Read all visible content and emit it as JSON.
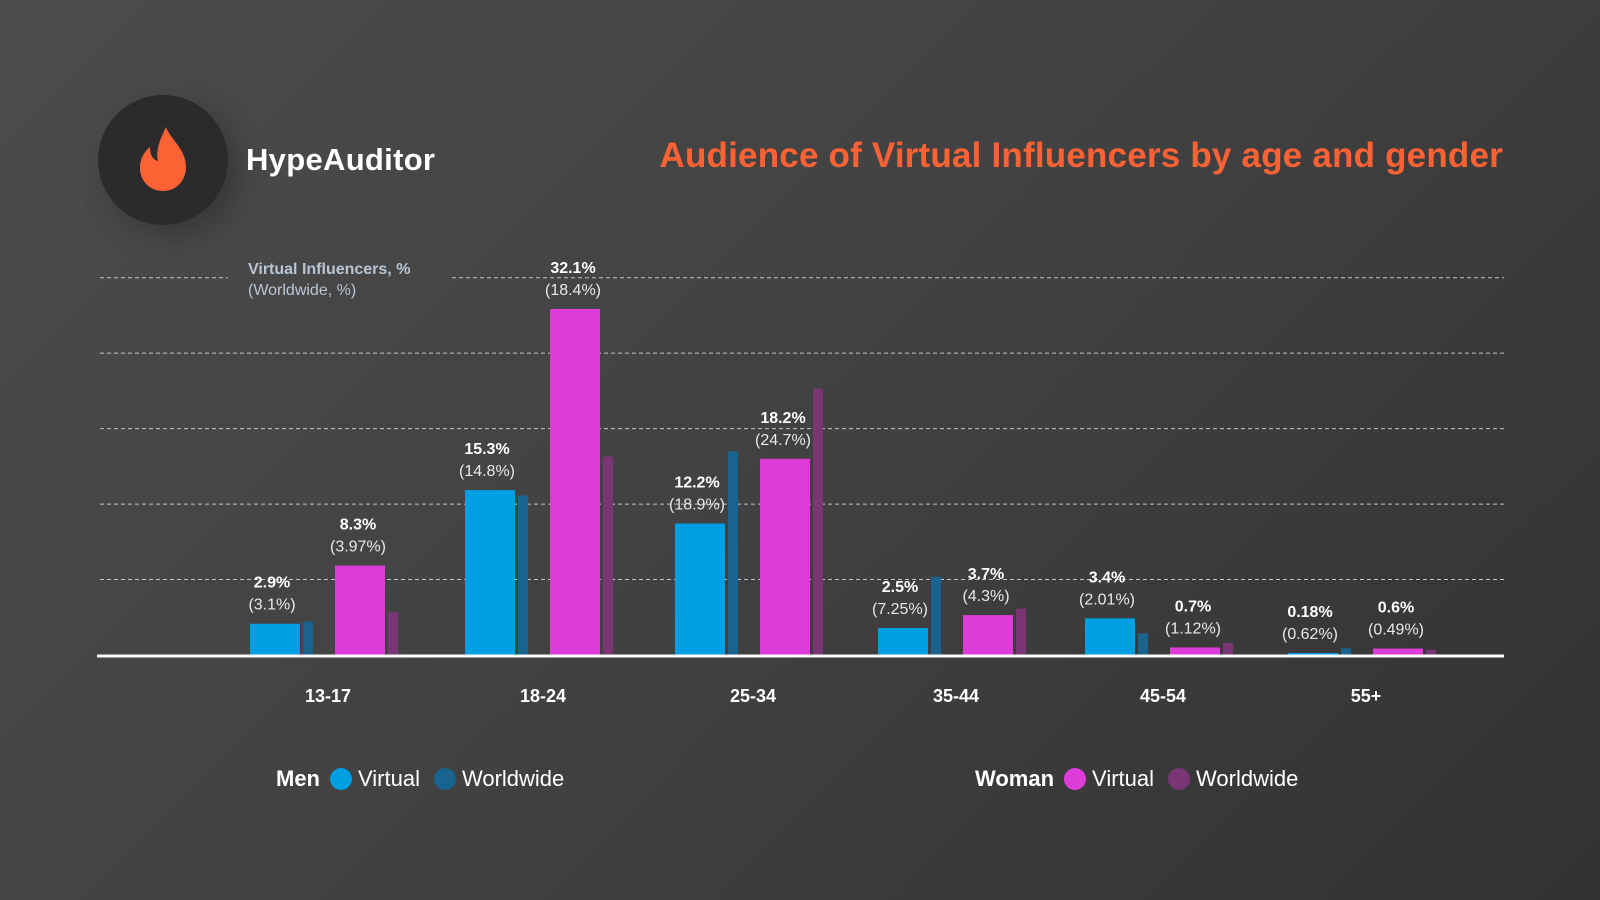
{
  "brand": {
    "name": "HypeAuditor",
    "logo_icon": "flame-icon",
    "accent_color": "#fd6234"
  },
  "colors": {
    "men_virtual": "#009ee3",
    "men_worldwide": "#19648e",
    "women_virtual": "#de3cd8",
    "women_worldwide": "#7a3674",
    "gridline": "#b9c7d6",
    "axis_label": "#b8c6d4"
  },
  "chart_data": {
    "type": "bar",
    "title": "Audience of Virtual Influencers by age and gender",
    "ylabel": "Virtual Influencers, %",
    "ylabel_sub": "(Worldwide, %)",
    "xlabel": "",
    "ylim": [
      0,
      35
    ],
    "gridlines": [
      7,
      14,
      21,
      28,
      35
    ],
    "grid": true,
    "legend_position": "bottom",
    "categories": [
      "13-17",
      "18-24",
      "25-34",
      "35-44",
      "45-54",
      "55+"
    ],
    "series": [
      {
        "name": "Men Virtual",
        "group": "Men",
        "values": [
          2.9,
          15.3,
          12.2,
          2.5,
          3.4,
          0.18
        ]
      },
      {
        "name": "Men Worldwide",
        "group": "Men",
        "values": [
          3.1,
          14.8,
          18.9,
          7.25,
          2.01,
          0.62
        ]
      },
      {
        "name": "Woman Virtual",
        "group": "Woman",
        "values": [
          8.3,
          32.1,
          18.2,
          3.7,
          0.7,
          0.6
        ]
      },
      {
        "name": "Woman Worldwide",
        "group": "Woman",
        "values": [
          3.97,
          18.4,
          24.7,
          4.3,
          1.12,
          0.49
        ]
      }
    ],
    "data_labels": {
      "men": [
        {
          "main": "2.9%",
          "sub": "(3.1%)"
        },
        {
          "main": "15.3%",
          "sub": "(14.8%)"
        },
        {
          "main": "12.2%",
          "sub": "(18.9%)"
        },
        {
          "main": "2.5%",
          "sub": "(7.25%)"
        },
        {
          "main": "3.4%",
          "sub": "(2.01%)"
        },
        {
          "main": "0.18%",
          "sub": "(0.62%)"
        }
      ],
      "women": [
        {
          "main": "8.3%",
          "sub": "(3.97%)"
        },
        {
          "main": "32.1%",
          "sub": "(18.4%)"
        },
        {
          "main": "18.2%",
          "sub": "(24.7%)"
        },
        {
          "main": "3.7%",
          "sub": "(4.3%)"
        },
        {
          "main": "0.7%",
          "sub": "(1.12%)"
        },
        {
          "main": "0.6%",
          "sub": "(0.49%)"
        }
      ]
    }
  },
  "legend": {
    "men": {
      "title": "Men",
      "virtual": "Virtual",
      "worldwide": "Worldwide"
    },
    "women": {
      "title": "Woman",
      "virtual": "Virtual",
      "worldwide": "Worldwide"
    }
  }
}
